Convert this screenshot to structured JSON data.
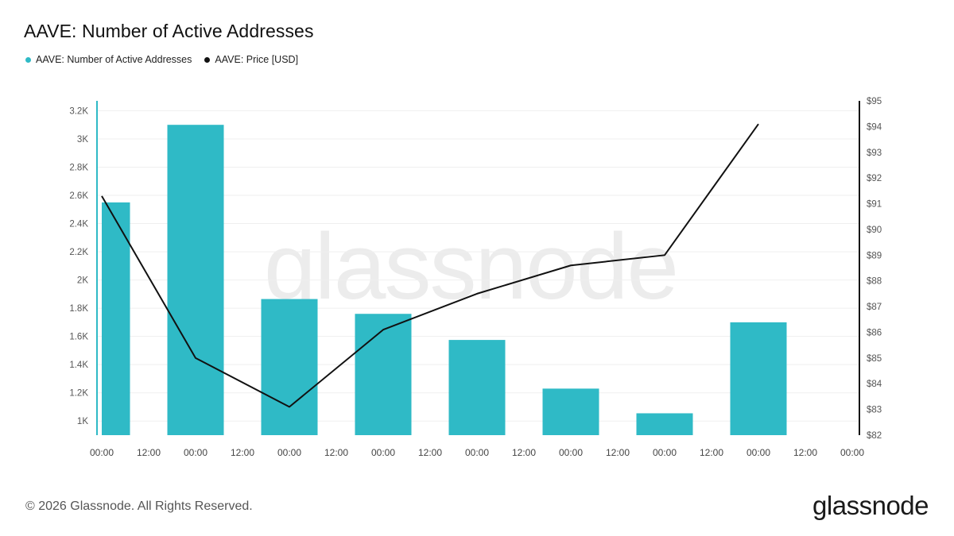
{
  "title": "AAVE: Number of Active Addresses",
  "legend": [
    {
      "label": "AAVE: Number of Active Addresses",
      "color": "#2fbac6"
    },
    {
      "label": "AAVE: Price [USD]",
      "color": "#111111"
    }
  ],
  "watermark": "glassnode",
  "footer": "© 2026 Glassnode. All Rights Reserved.",
  "brand": "glassnode",
  "chart_data": {
    "type": "bar",
    "x_tick_labels": [
      "00:00",
      "12:00",
      "00:00",
      "12:00",
      "00:00",
      "12:00",
      "00:00",
      "12:00",
      "00:00",
      "12:00",
      "00:00",
      "12:00",
      "00:00",
      "12:00",
      "00:00",
      "12:00",
      "00:00"
    ],
    "left_axis": {
      "ticks": [
        1000,
        1200,
        1400,
        1600,
        1800,
        2000,
        2200,
        2400,
        2600,
        2800,
        3000,
        3200
      ],
      "tick_labels": [
        "1K",
        "1.2K",
        "1.4K",
        "1.6K",
        "1.8K",
        "2K",
        "2.2K",
        "2.4K",
        "2.6K",
        "2.8K",
        "3K",
        "3.2K"
      ],
      "ylim": [
        900,
        3270
      ]
    },
    "right_axis": {
      "ticks": [
        82,
        83,
        84,
        85,
        86,
        87,
        88,
        89,
        90,
        91,
        92,
        93,
        94,
        95
      ],
      "tick_labels": [
        "$82",
        "$83",
        "$84",
        "$85",
        "$86",
        "$87",
        "$88",
        "$89",
        "$90",
        "$91",
        "$92",
        "$93",
        "$94",
        "$95"
      ],
      "ylim": [
        82,
        95
      ]
    },
    "series": [
      {
        "name": "AAVE: Number of Active Addresses",
        "type": "bar",
        "axis": "left",
        "color": "#2fbac6",
        "values": [
          2550,
          3100,
          1865,
          1760,
          1575,
          1230,
          1055,
          1700
        ]
      },
      {
        "name": "AAVE: Price [USD]",
        "type": "line",
        "axis": "right",
        "color": "#111111",
        "values": [
          91.3,
          85.0,
          83.1,
          86.1,
          87.5,
          88.6,
          89.0,
          94.1
        ]
      }
    ],
    "grid": true
  }
}
